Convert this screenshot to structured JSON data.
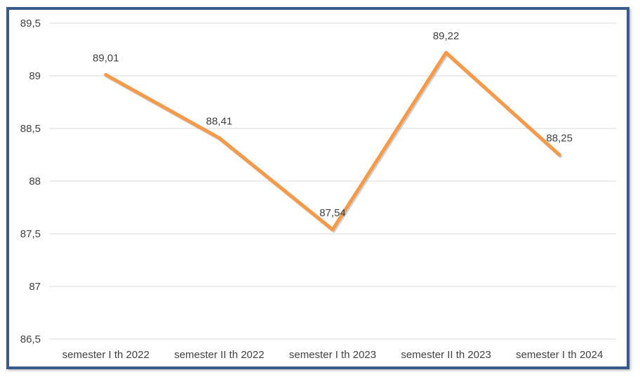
{
  "chart_data": {
    "type": "line",
    "categories": [
      "semester I th 2022",
      "semester II th 2022",
      "semester I th 2023",
      "semester II th 2023",
      "semester I th 2024"
    ],
    "series": [
      {
        "values": [
          89.01,
          88.41,
          87.54,
          89.22,
          88.25
        ]
      }
    ],
    "data_labels": [
      "89,01",
      "88,41",
      "87,54",
      "89,22",
      "88,25"
    ],
    "y_ticks": [
      86.5,
      87,
      87.5,
      88,
      88.5,
      89,
      89.5
    ],
    "y_tick_labels": [
      "86,5",
      "87",
      "87,5",
      "88",
      "88,5",
      "89",
      "89,5"
    ],
    "ylim": [
      86.5,
      89.5
    ],
    "grid": true,
    "legend": "none",
    "title": "",
    "xlabel": "",
    "ylabel": "",
    "colors": {
      "line": "#f59a4a",
      "grid": "#d9d9d9",
      "frame": "#3a5a8c"
    }
  }
}
